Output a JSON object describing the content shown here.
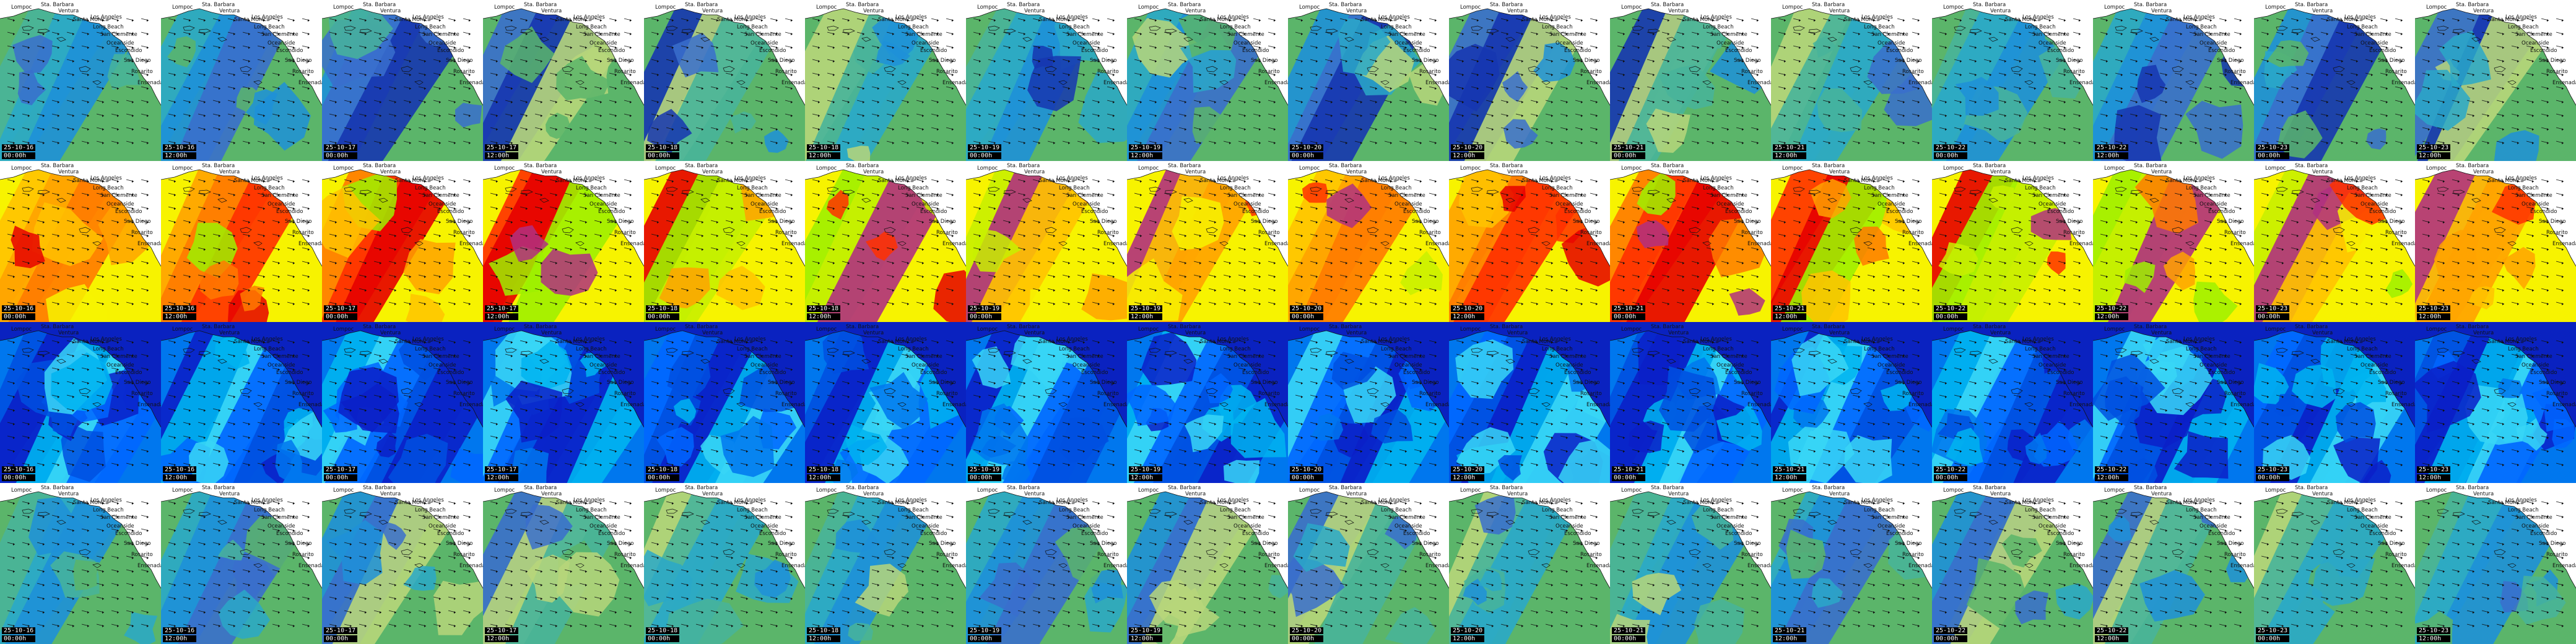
{
  "place_names": [
    "Lompoc",
    "Sta. Barbara",
    "Ventura",
    "Santa Monica",
    "Los Angeles",
    "Long Beach",
    "San Clemente",
    "Oceanside",
    "Escondido",
    "San Diego",
    "Rosarito",
    "Ensenada"
  ],
  "frames": [
    {
      "date": "25-10-16",
      "time": "00:00h"
    },
    {
      "date": "25-10-16",
      "time": "12:00h"
    },
    {
      "date": "25-10-17",
      "time": "00:00h"
    },
    {
      "date": "25-10-17",
      "time": "12:00h"
    },
    {
      "date": "25-10-18",
      "time": "00:00h"
    },
    {
      "date": "25-10-18",
      "time": "12:00h"
    },
    {
      "date": "25-10-19",
      "time": "00:00h"
    },
    {
      "date": "25-10-19",
      "time": "12:00h"
    },
    {
      "date": "25-10-20",
      "time": "00:00h"
    },
    {
      "date": "25-10-20",
      "time": "12:00h"
    },
    {
      "date": "25-10-21",
      "time": "00:00h"
    },
    {
      "date": "25-10-21",
      "time": "12:00h"
    },
    {
      "date": "25-10-22",
      "time": "00:00h"
    },
    {
      "date": "25-10-22",
      "time": "12:00h"
    },
    {
      "date": "25-10-23",
      "time": "00:00h"
    },
    {
      "date": "25-10-23",
      "time": "12:00h"
    }
  ],
  "rows": [
    {
      "layer": "wave-height",
      "palette": [
        "#5bb56a",
        "#48b49a",
        "#2aa8c8",
        "#1e90d8",
        "#3a6fcc",
        "#1636b0",
        "#b7d67a"
      ]
    },
    {
      "layer": "wave-period",
      "palette": [
        "#f7f300",
        "#ffc300",
        "#ffa200",
        "#ff7a00",
        "#ff3000",
        "#e60000",
        "#9ef000",
        "#c8f000",
        "#b03080"
      ]
    },
    {
      "layer": "wave-direction",
      "palette": [
        "#0077ee",
        "#0050e0",
        "#0a20c8",
        "#00b4f0",
        "#38d6f6",
        "#0066ff"
      ]
    },
    {
      "layer": "swell-height",
      "palette": [
        "#5bb56a",
        "#48b49a",
        "#2aa8c8",
        "#1e90d8",
        "#3a6fcc",
        "#b7d67a"
      ]
    }
  ]
}
